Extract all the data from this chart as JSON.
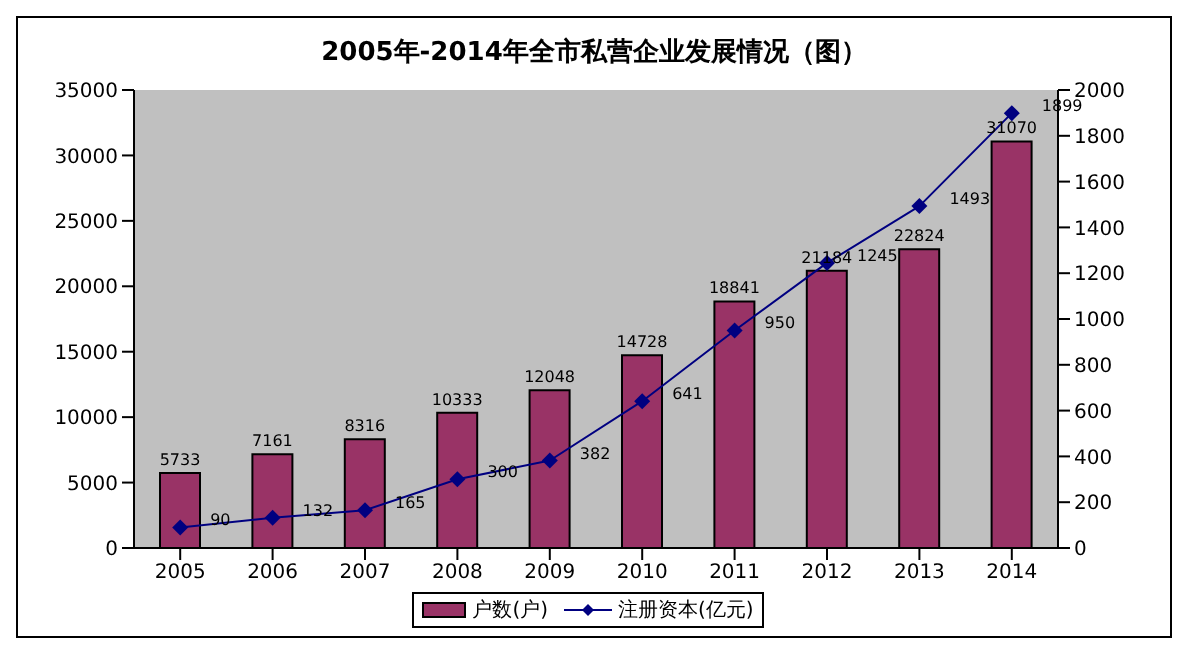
{
  "chart_data": {
    "type": "bar",
    "title": "2005年-2014年全市私营企业发展情况（图）",
    "categories": [
      "2005",
      "2006",
      "2007",
      "2008",
      "2009",
      "2010",
      "2011",
      "2012",
      "2013",
      "2014"
    ],
    "series": [
      {
        "name": "户数(户)",
        "color": "#993366",
        "values": [
          5733,
          7161,
          8316,
          10333,
          12048,
          14728,
          18841,
          21184,
          22824,
          31070
        ]
      },
      {
        "name": "注册资本(亿元)",
        "type": "line",
        "axis": "y2",
        "color": "#000080",
        "values": [
          90,
          132,
          165,
          300,
          382,
          641,
          950,
          1245,
          1493,
          1899
        ]
      }
    ],
    "ylim": [
      0,
      35000
    ],
    "yticks": [
      0,
      5000,
      10000,
      15000,
      20000,
      25000,
      30000,
      35000
    ],
    "y2lim": [
      0,
      2000
    ],
    "y2ticks": [
      0,
      200,
      400,
      600,
      800,
      1000,
      1200,
      1400,
      1600,
      1800,
      2000
    ],
    "data_labels": true,
    "legend": "bottom",
    "grid": false,
    "marker": "diamond",
    "line_style": "solid"
  }
}
